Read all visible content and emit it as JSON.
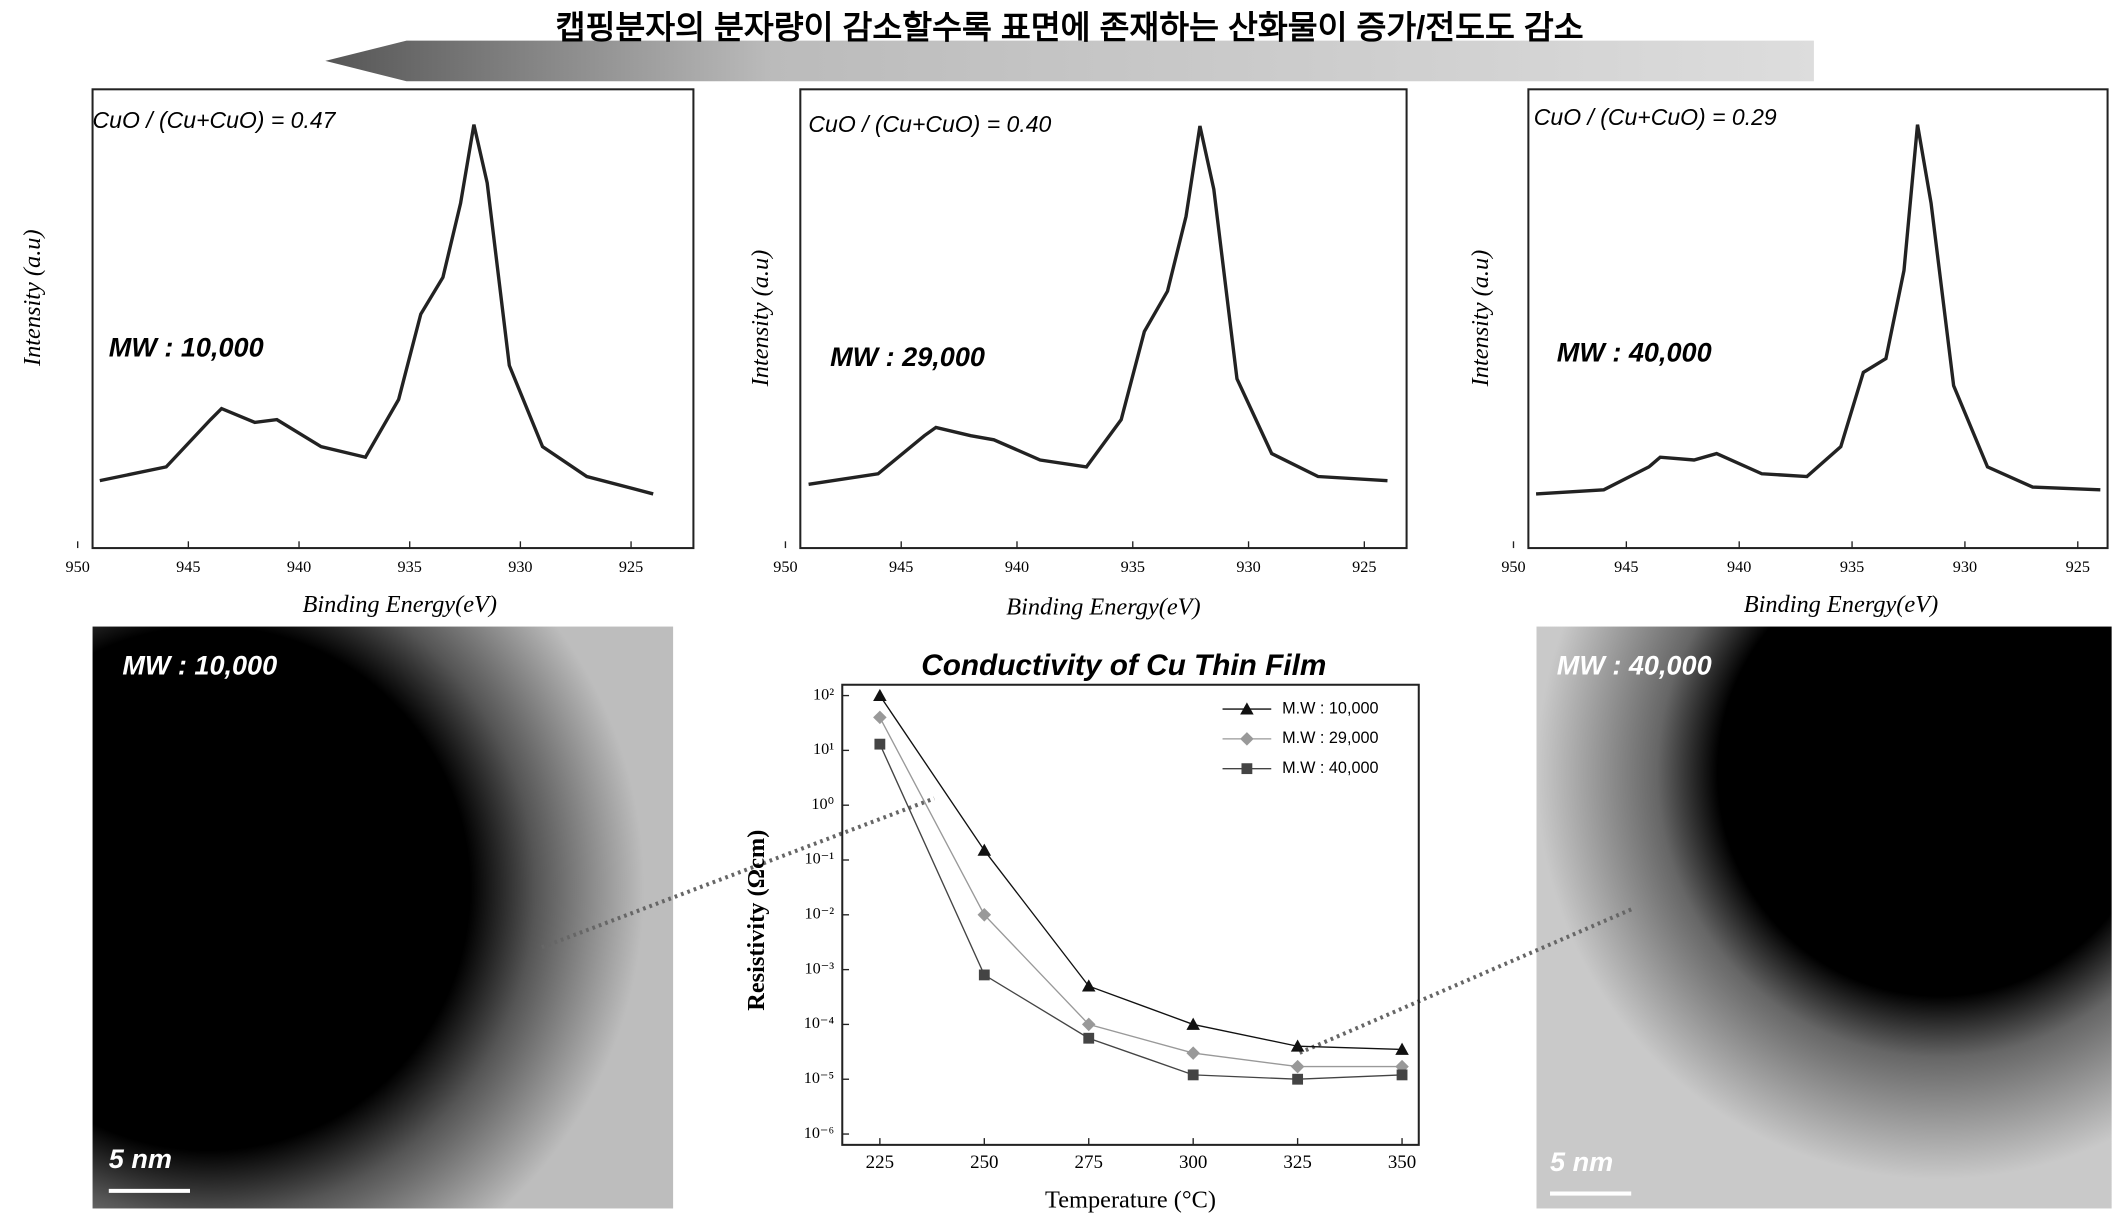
{
  "header": {
    "title": "캡핑분자의 분자량이 감소할수록 표면에 존재하는 산화물이 증가/전도도 감소"
  },
  "images": [
    {
      "label": "MW : 10,000",
      "scale_bar": "5 nm"
    },
    {
      "label": "MW : 40,000",
      "scale_bar": "5 nm"
    }
  ],
  "chart_data": [
    {
      "type": "line",
      "annotations": [
        "CuO  / (Cu+CuO) = 0.47",
        "MW : 10,000"
      ],
      "xlabel": "Binding Energy(eV)",
      "ylabel": "Intensity (a.u)",
      "x": [
        949,
        946,
        944,
        943.5,
        942,
        941,
        939,
        937,
        935.5,
        934.5,
        933.5,
        932.7,
        932.1,
        931.5,
        930.5,
        929,
        927,
        924
      ],
      "series": [
        {
          "color": "#222222",
          "values": [
            0.147,
            0.177,
            0.28,
            0.304,
            0.274,
            0.28,
            0.221,
            0.198,
            0.324,
            0.51,
            0.59,
            0.752,
            0.923,
            0.796,
            0.398,
            0.221,
            0.156,
            0.118
          ]
        }
      ],
      "xlim": [
        950,
        922
      ],
      "ylim": [
        0,
        1
      ],
      "xticks": [
        950,
        945,
        940,
        935,
        930,
        925
      ]
    },
    {
      "type": "line",
      "annotations": [
        "CuO / (Cu+CuO) = 0.40",
        "MW : 29,000"
      ],
      "xlabel": "Binding Energy(eV)",
      "ylabel": "Intensity (a.u)",
      "x": [
        949,
        946,
        944,
        943.5,
        942,
        941,
        939,
        937,
        935.5,
        934.5,
        933.5,
        932.7,
        932.1,
        931.5,
        930.5,
        929,
        927,
        924
      ],
      "series": [
        {
          "color": "#222222",
          "values": [
            0.139,
            0.162,
            0.245,
            0.263,
            0.245,
            0.236,
            0.192,
            0.177,
            0.28,
            0.472,
            0.56,
            0.723,
            0.92,
            0.782,
            0.369,
            0.206,
            0.156,
            0.147
          ]
        }
      ],
      "xlim": [
        950,
        923
      ],
      "ylim": [
        0,
        1
      ],
      "xticks": [
        950,
        945,
        940,
        935,
        930,
        925
      ]
    },
    {
      "type": "line",
      "annotations": [
        "CuO / (Cu+CuO) = 0.29",
        "MW : 40,000"
      ],
      "xlabel": "Binding Energy(eV)",
      "ylabel": "Intensity (a.u)",
      "x": [
        949,
        946,
        944,
        943.5,
        942,
        941,
        939,
        937,
        935.5,
        934.5,
        933.5,
        932.7,
        932.1,
        931.5,
        930.5,
        929,
        927,
        924
      ],
      "series": [
        {
          "color": "#222222",
          "values": [
            0.118,
            0.127,
            0.177,
            0.198,
            0.192,
            0.206,
            0.162,
            0.156,
            0.221,
            0.383,
            0.413,
            0.605,
            0.923,
            0.752,
            0.354,
            0.177,
            0.133,
            0.127
          ]
        }
      ],
      "xlim": [
        950,
        923.5
      ],
      "ylim": [
        0,
        1
      ],
      "xticks": [
        950,
        945,
        940,
        935,
        930,
        925
      ]
    },
    {
      "type": "line",
      "title": "Conductivity of Cu Thin Film",
      "xlabel": "Temperature (°C)",
      "ylabel": "Resistivity (Ωcm)",
      "x": [
        225,
        250,
        275,
        300,
        325,
        350
      ],
      "series": [
        {
          "name": "M.W : 10,000",
          "color": "#111111",
          "marker": "triangle",
          "values": [
            100,
            0.15,
            0.0005,
            0.0001,
            4e-05,
            3.5e-05
          ]
        },
        {
          "name": "M.W : 29,000",
          "color": "#999999",
          "marker": "diamond",
          "values": [
            40,
            0.01,
            0.0001,
            3e-05,
            1.7e-05,
            1.7e-05
          ]
        },
        {
          "name": "M.W : 40,000",
          "color": "#444444",
          "marker": "square",
          "values": [
            13,
            0.0008,
            5.6e-05,
            1.2e-05,
            1e-05,
            1.2e-05
          ]
        }
      ],
      "xlim": [
        216,
        354
      ],
      "ylim": [
        1e-06,
        100
      ],
      "log_scale": true,
      "legend": "upper right",
      "xticks": [
        225,
        250,
        275,
        300,
        325,
        350
      ],
      "yticks": [
        {
          "value": 100,
          "label": "10²"
        },
        {
          "value": 10,
          "label": "10¹"
        },
        {
          "value": 1,
          "label": "10⁰"
        },
        {
          "value": 0.1,
          "label": "10⁻¹"
        },
        {
          "value": 0.01,
          "label": "10⁻²"
        },
        {
          "value": 0.001,
          "label": "10⁻³"
        },
        {
          "value": 0.0001,
          "label": "10⁻⁴"
        },
        {
          "value": 1e-05,
          "label": "10⁻⁵"
        },
        {
          "value": 1e-06,
          "label": "10⁻⁶"
        }
      ]
    }
  ]
}
